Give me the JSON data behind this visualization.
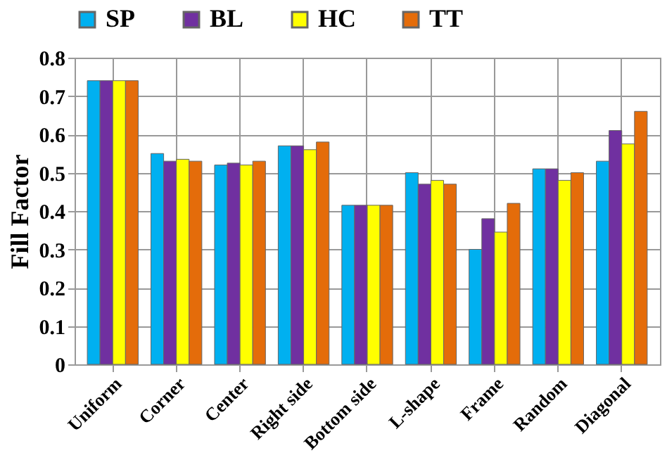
{
  "chart_data": {
    "type": "bar",
    "ylabel": "Fill Factor",
    "categories": [
      "Uniform",
      "Corner",
      "Center",
      "Right side",
      "Bottom side",
      "L-shape",
      "Frame",
      "Random",
      "Diagonal"
    ],
    "series": [
      {
        "name": "SP",
        "color": "#00b0f0",
        "values": [
          0.74,
          0.55,
          0.52,
          0.57,
          0.415,
          0.5,
          0.3,
          0.51,
          0.53
        ]
      },
      {
        "name": "BL",
        "color": "#7030a0",
        "values": [
          0.74,
          0.53,
          0.525,
          0.57,
          0.415,
          0.47,
          0.38,
          0.51,
          0.61
        ]
      },
      {
        "name": "HC",
        "color": "#ffff00",
        "values": [
          0.74,
          0.535,
          0.52,
          0.56,
          0.415,
          0.48,
          0.345,
          0.48,
          0.575
        ]
      },
      {
        "name": "TT",
        "color": "#e46c0a",
        "values": [
          0.74,
          0.53,
          0.53,
          0.58,
          0.415,
          0.47,
          0.42,
          0.5,
          0.66
        ]
      }
    ],
    "ylim": [
      0,
      0.8
    ],
    "yticks": [
      0,
      0.1,
      0.2,
      0.3,
      0.4,
      0.5,
      0.6,
      0.7,
      0.8
    ],
    "grid": true,
    "legend": "top"
  }
}
